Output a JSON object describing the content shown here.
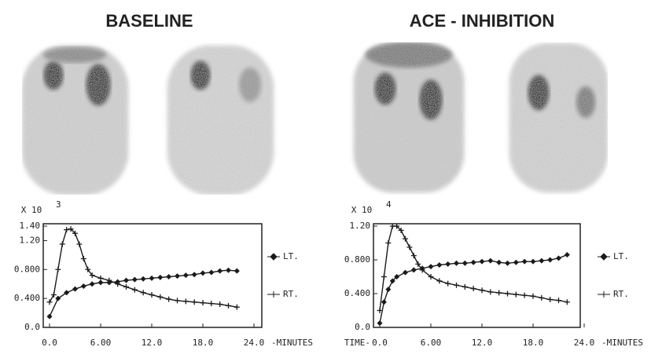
{
  "chart_data": [
    {
      "type": "line",
      "title": "BASELINE",
      "ylabel": "X 10",
      "ylabel_exponent": "3",
      "xlabel": "-MINUTES",
      "xlim": [
        0,
        24
      ],
      "ylim": [
        0,
        1.4
      ],
      "xticks": [
        {
          "value": 0,
          "label": "0.0"
        },
        {
          "value": 6,
          "label": "6.00"
        },
        {
          "value": 12,
          "label": "12.0"
        },
        {
          "value": 18,
          "label": "18.0"
        },
        {
          "value": 24,
          "label": "24.0"
        }
      ],
      "yticks": [
        {
          "value": 0,
          "label": "0.0"
        },
        {
          "value": 0.4,
          "label": "0.400"
        },
        {
          "value": 0.8,
          "label": "0.800"
        },
        {
          "value": 1.2,
          "label": "1.20"
        },
        {
          "value": 1.4,
          "label": "1.40"
        }
      ],
      "series": [
        {
          "name": "LT.",
          "color": "#1a1a1a",
          "marker": "diamond",
          "x": [
            0,
            1,
            2,
            3,
            4,
            5,
            6,
            7,
            8,
            9,
            10,
            11,
            12,
            13,
            14,
            15,
            16,
            17,
            18,
            19,
            20,
            21,
            22
          ],
          "values": [
            0.15,
            0.4,
            0.48,
            0.53,
            0.57,
            0.6,
            0.62,
            0.62,
            0.63,
            0.65,
            0.66,
            0.67,
            0.68,
            0.69,
            0.7,
            0.71,
            0.72,
            0.73,
            0.75,
            0.76,
            0.78,
            0.79,
            0.78
          ]
        },
        {
          "name": "RT.",
          "color": "#1a1a1a",
          "marker": "plus",
          "x": [
            0,
            0.5,
            1,
            1.5,
            2,
            2.5,
            3,
            3.5,
            4,
            4.5,
            5,
            6,
            7,
            8,
            9,
            10,
            11,
            12,
            13,
            14,
            15,
            16,
            17,
            18,
            19,
            20,
            21,
            22
          ],
          "values": [
            0.35,
            0.45,
            0.8,
            1.15,
            1.35,
            1.36,
            1.3,
            1.15,
            0.95,
            0.8,
            0.72,
            0.68,
            0.65,
            0.6,
            0.56,
            0.52,
            0.48,
            0.45,
            0.42,
            0.39,
            0.37,
            0.36,
            0.35,
            0.34,
            0.33,
            0.32,
            0.3,
            0.28
          ]
        }
      ]
    },
    {
      "type": "line",
      "title": "ACE - INHIBITION",
      "ylabel": "X 10",
      "ylabel_exponent": "4",
      "xlabel": "-MINUTES",
      "xlabel_prefix": "TIME-",
      "xlim": [
        0,
        24
      ],
      "ylim": [
        0,
        1.2
      ],
      "xticks": [
        {
          "value": 0,
          "label": "0.0"
        },
        {
          "value": 6,
          "label": "6.00"
        },
        {
          "value": 12,
          "label": "12.0"
        },
        {
          "value": 18,
          "label": "18.0"
        },
        {
          "value": 24,
          "label": "24.0"
        }
      ],
      "yticks": [
        {
          "value": 0,
          "label": "0.0"
        },
        {
          "value": 0.4,
          "label": "0.400"
        },
        {
          "value": 0.8,
          "label": "0.800"
        },
        {
          "value": 1.2,
          "label": "1.20"
        }
      ],
      "series": [
        {
          "name": "LT.",
          "color": "#1a1a1a",
          "marker": "diamond",
          "x": [
            0,
            0.5,
            1,
            1.5,
            2,
            3,
            4,
            5,
            6,
            7,
            8,
            9,
            10,
            11,
            12,
            13,
            14,
            15,
            16,
            17,
            18,
            19,
            20,
            21,
            22
          ],
          "values": [
            0.05,
            0.3,
            0.45,
            0.55,
            0.6,
            0.65,
            0.68,
            0.7,
            0.72,
            0.74,
            0.75,
            0.76,
            0.76,
            0.77,
            0.78,
            0.79,
            0.77,
            0.76,
            0.77,
            0.78,
            0.78,
            0.79,
            0.8,
            0.82,
            0.86
          ]
        },
        {
          "name": "RT.",
          "color": "#1a1a1a",
          "marker": "plus",
          "x": [
            0,
            0.5,
            1,
            1.5,
            2,
            2.5,
            3,
            3.5,
            4,
            4.5,
            5,
            6,
            7,
            8,
            9,
            10,
            11,
            12,
            13,
            14,
            15,
            16,
            17,
            18,
            19,
            20,
            21,
            22
          ],
          "values": [
            0.2,
            0.6,
            1.0,
            1.2,
            1.2,
            1.15,
            1.05,
            0.95,
            0.85,
            0.75,
            0.68,
            0.6,
            0.55,
            0.52,
            0.5,
            0.48,
            0.46,
            0.44,
            0.42,
            0.41,
            0.4,
            0.39,
            0.38,
            0.37,
            0.35,
            0.33,
            0.32,
            0.3
          ]
        }
      ]
    }
  ]
}
